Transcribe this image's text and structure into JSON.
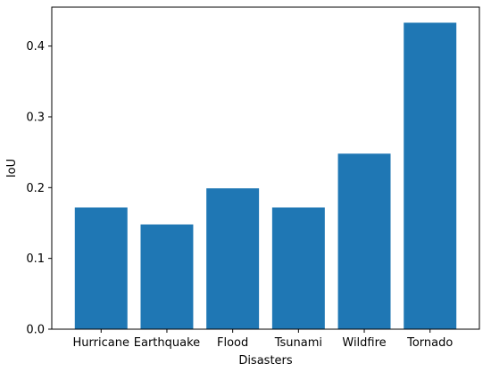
{
  "chart_data": {
    "type": "bar",
    "categories": [
      "Hurricane",
      "Earthquake",
      "Flood",
      "Tsunami",
      "Wildfire",
      "Tornado"
    ],
    "values": [
      0.172,
      0.148,
      0.199,
      0.172,
      0.248,
      0.433
    ],
    "xlabel": "Disasters",
    "ylabel": "IoU",
    "ylim": [
      0,
      0.455
    ],
    "yticks": [
      0.0,
      0.1,
      0.2,
      0.3,
      0.4
    ],
    "ytick_labels": [
      "0.0",
      "0.1",
      "0.2",
      "0.3",
      "0.4"
    ],
    "bar_color": "#1f77b4",
    "grid": false,
    "legend": "none"
  }
}
